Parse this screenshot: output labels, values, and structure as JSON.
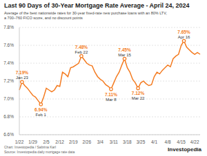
{
  "chart_data": {
    "type": "line",
    "title": "Last 90 Days of 30-Year Mortgage Rate Average - April 24, 2024",
    "subtitle": "Average of the best nationwide rates for 30-year fixed-rate new purchase loans with an 80% LTV, a 700–760 FICO score, and no discount points",
    "categories": [
      "1/22",
      null,
      null,
      null,
      null,
      "1/29",
      null,
      null,
      null,
      null,
      "2/5",
      null,
      null,
      null,
      null,
      "2/12",
      null,
      null,
      null,
      null,
      "2/19",
      null,
      null,
      null,
      null,
      "2/26",
      null,
      null,
      null,
      null,
      "3/4",
      null,
      null,
      null,
      null,
      "3/11",
      null,
      null,
      null,
      null,
      "3/18",
      null,
      null,
      null,
      null,
      "3/25",
      null,
      null,
      null,
      null,
      "4/1",
      null,
      null,
      null,
      null,
      "4/8",
      null,
      null,
      null,
      null,
      "4/15",
      null,
      null,
      null,
      null,
      "4/22",
      null,
      null
    ],
    "values": [
      7.1,
      7.19,
      7.15,
      7.12,
      7.08,
      7.04,
      7.02,
      6.98,
      6.94,
      7.02,
      7.12,
      7.1,
      7.08,
      7.1,
      7.15,
      7.14,
      7.3,
      7.28,
      7.25,
      7.35,
      7.36,
      7.38,
      7.4,
      7.48,
      7.44,
      7.4,
      7.38,
      7.37,
      7.3,
      7.25,
      7.22,
      7.2,
      7.16,
      7.14,
      7.11,
      7.18,
      7.25,
      7.3,
      7.38,
      7.45,
      7.35,
      7.3,
      7.22,
      7.18,
      7.12,
      7.18,
      7.2,
      7.17,
      7.15,
      7.16,
      7.25,
      7.3,
      7.28,
      7.32,
      7.35,
      7.38,
      7.36,
      7.45,
      7.48,
      7.5,
      7.6,
      7.65,
      7.58,
      7.55,
      7.52,
      7.5,
      7.52,
      7.5
    ],
    "color": "#f47b20",
    "ylim": [
      6.6,
      7.8
    ],
    "yticks": [
      {
        "value": 6.6,
        "label": "6.6%"
      },
      {
        "value": 6.8,
        "label": "6.8%"
      },
      {
        "value": 7.0,
        "label": "7.0%"
      },
      {
        "value": 7.2,
        "label": "7.2%"
      },
      {
        "value": 7.4,
        "label": "7.4%"
      },
      {
        "value": 7.6,
        "label": "7.6%"
      },
      {
        "value": 7.8,
        "label": "7.8%"
      }
    ],
    "grid": true,
    "annotations": [
      {
        "x": 1,
        "value": 7.19,
        "label": "7.19%",
        "date": "Jan 23"
      },
      {
        "x": 8,
        "value": 6.94,
        "label": "6.94%",
        "date": "Feb 1"
      },
      {
        "x": 23,
        "value": 7.48,
        "label": "7.48%",
        "date": "Feb 22"
      },
      {
        "x": 34,
        "value": 7.11,
        "label": "7.11%",
        "date": "Mar 8"
      },
      {
        "x": 39,
        "value": 7.45,
        "label": "7.45%",
        "date": "Mar 15"
      },
      {
        "x": 44,
        "value": 7.12,
        "label": "7.12%",
        "date": "Mar 22"
      },
      {
        "x": 61,
        "value": 7.65,
        "label": "7.65%",
        "date": "Apr 16"
      }
    ],
    "credit": "Chart: Investopedia / Sabrina Karl",
    "source": "Source: Investopedia daily mortgage rate data",
    "logo": "Investopedia"
  }
}
